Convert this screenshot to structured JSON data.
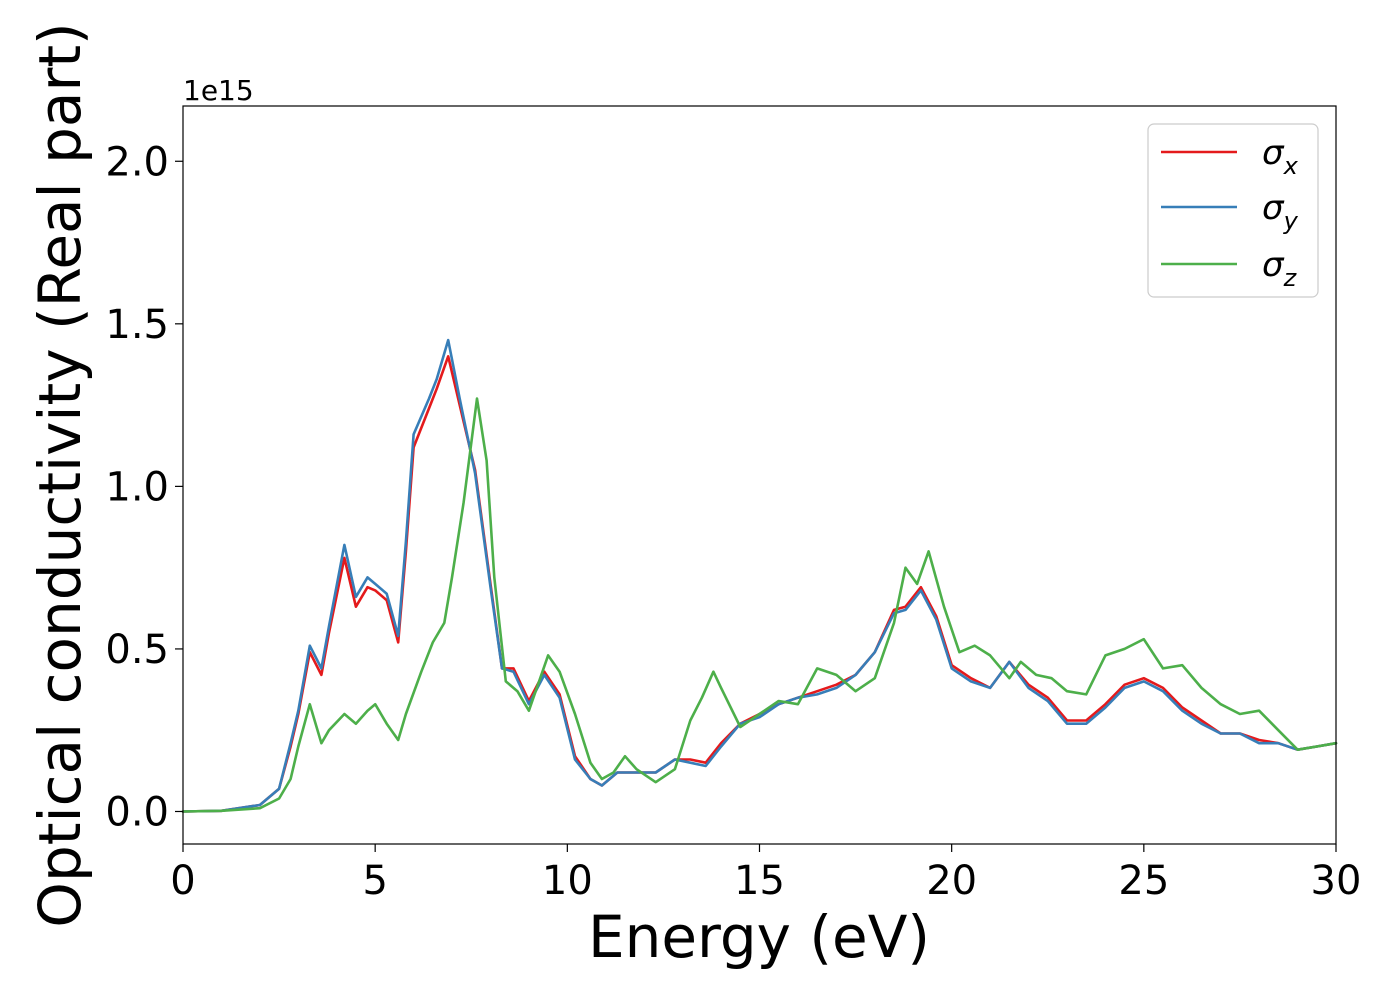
{
  "chart_data": {
    "type": "line",
    "xlabel": "Energy (eV)",
    "ylabel": "Optical conductivity (Real part)",
    "offset_text": "1e15",
    "xlim": [
      0,
      30
    ],
    "ylim": [
      -0.1,
      2.17
    ],
    "xticks": [
      0,
      5,
      10,
      15,
      20,
      25,
      30
    ],
    "xtick_labels": [
      "0",
      "5",
      "10",
      "15",
      "20",
      "25",
      "30"
    ],
    "yticks": [
      0.0,
      0.5,
      1.0,
      1.5,
      2.0
    ],
    "ytick_labels": [
      "0.0",
      "0.5",
      "1.0",
      "1.5",
      "2.0"
    ],
    "grid": false,
    "legend_position": "top-right",
    "series": [
      {
        "name": "σx",
        "label_base": "σ",
        "label_sub": "x",
        "color": "#e41a1c",
        "x": [
          0,
          1,
          2,
          2.5,
          2.8,
          3.0,
          3.3,
          3.6,
          3.8,
          4.2,
          4.5,
          4.8,
          5.0,
          5.3,
          5.6,
          5.8,
          6.0,
          6.4,
          6.6,
          6.9,
          7.2,
          7.6,
          8.0,
          8.3,
          8.6,
          9.0,
          9.4,
          9.8,
          10.2,
          10.6,
          10.9,
          11.3,
          11.8,
          12.3,
          12.8,
          13.2,
          13.6,
          14.0,
          14.5,
          15.0,
          15.5,
          16.0,
          16.5,
          17.0,
          17.5,
          18.0,
          18.5,
          18.8,
          19.2,
          19.6,
          20.0,
          20.5,
          21.0,
          21.5,
          22.0,
          22.5,
          23.0,
          23.5,
          24.0,
          24.5,
          25.0,
          25.5,
          26.0,
          26.5,
          27.0,
          27.5,
          28.0,
          28.5,
          29.0,
          29.5,
          30.0
        ],
        "y": [
          0,
          0.002,
          0.02,
          0.07,
          0.2,
          0.3,
          0.49,
          0.42,
          0.55,
          0.78,
          0.63,
          0.69,
          0.68,
          0.65,
          0.52,
          0.8,
          1.12,
          1.24,
          1.3,
          1.4,
          1.25,
          1.05,
          0.7,
          0.44,
          0.44,
          0.34,
          0.43,
          0.36,
          0.17,
          0.1,
          0.08,
          0.12,
          0.12,
          0.12,
          0.16,
          0.16,
          0.15,
          0.21,
          0.27,
          0.3,
          0.33,
          0.35,
          0.37,
          0.39,
          0.42,
          0.49,
          0.62,
          0.63,
          0.69,
          0.6,
          0.45,
          0.41,
          0.38,
          0.46,
          0.39,
          0.35,
          0.28,
          0.28,
          0.33,
          0.39,
          0.41,
          0.38,
          0.32,
          0.28,
          0.24,
          0.24,
          0.22,
          0.21,
          0.19,
          0.2,
          0.21
        ]
      },
      {
        "name": "σy",
        "label_base": "σ",
        "label_sub": "y",
        "color": "#377eb8",
        "x": [
          0,
          1,
          2,
          2.5,
          2.8,
          3.0,
          3.3,
          3.6,
          3.8,
          4.2,
          4.5,
          4.8,
          5.0,
          5.3,
          5.6,
          5.8,
          6.0,
          6.4,
          6.6,
          6.9,
          7.2,
          7.6,
          8.0,
          8.3,
          8.6,
          9.0,
          9.4,
          9.8,
          10.2,
          10.6,
          10.9,
          11.3,
          11.8,
          12.3,
          12.8,
          13.2,
          13.6,
          14.0,
          14.5,
          15.0,
          15.5,
          16.0,
          16.5,
          17.0,
          17.5,
          18.0,
          18.5,
          18.8,
          19.2,
          19.6,
          20.0,
          20.5,
          21.0,
          21.5,
          22.0,
          22.5,
          23.0,
          23.5,
          24.0,
          24.5,
          25.0,
          25.5,
          26.0,
          26.5,
          27.0,
          27.5,
          28.0,
          28.5,
          29.0,
          29.5,
          30.0
        ],
        "y": [
          0,
          0.002,
          0.02,
          0.07,
          0.21,
          0.31,
          0.51,
          0.44,
          0.57,
          0.82,
          0.66,
          0.72,
          0.7,
          0.67,
          0.54,
          0.83,
          1.16,
          1.27,
          1.33,
          1.45,
          1.27,
          1.04,
          0.69,
          0.44,
          0.43,
          0.33,
          0.42,
          0.35,
          0.16,
          0.1,
          0.08,
          0.12,
          0.12,
          0.12,
          0.16,
          0.15,
          0.14,
          0.2,
          0.27,
          0.29,
          0.33,
          0.35,
          0.36,
          0.38,
          0.42,
          0.49,
          0.61,
          0.62,
          0.68,
          0.59,
          0.44,
          0.4,
          0.38,
          0.46,
          0.38,
          0.34,
          0.27,
          0.27,
          0.32,
          0.38,
          0.4,
          0.37,
          0.31,
          0.27,
          0.24,
          0.24,
          0.21,
          0.21,
          0.19,
          0.2,
          0.21
        ]
      },
      {
        "name": "σz",
        "label_base": "σ",
        "label_sub": "z",
        "color": "#4daf4a",
        "x": [
          0,
          1,
          2,
          2.5,
          2.8,
          3.0,
          3.3,
          3.6,
          3.8,
          4.2,
          4.5,
          4.8,
          5.0,
          5.3,
          5.6,
          5.8,
          6.2,
          6.5,
          6.8,
          7.0,
          7.3,
          7.65,
          7.9,
          8.1,
          8.4,
          8.7,
          9.0,
          9.5,
          9.8,
          10.2,
          10.6,
          10.9,
          11.2,
          11.5,
          11.8,
          12.3,
          12.8,
          13.2,
          13.5,
          13.8,
          14.0,
          14.5,
          15.0,
          15.5,
          16.0,
          16.5,
          17.0,
          17.5,
          18.0,
          18.5,
          18.8,
          19.1,
          19.4,
          19.8,
          20.2,
          20.6,
          21.0,
          21.5,
          21.8,
          22.2,
          22.6,
          23.0,
          23.5,
          24.0,
          24.5,
          25.0,
          25.5,
          26.0,
          26.5,
          27.0,
          27.5,
          28.0,
          28.5,
          29.0,
          29.5,
          30.0
        ],
        "y": [
          0,
          0.002,
          0.01,
          0.04,
          0.1,
          0.2,
          0.33,
          0.21,
          0.25,
          0.3,
          0.27,
          0.31,
          0.33,
          0.27,
          0.22,
          0.3,
          0.43,
          0.52,
          0.58,
          0.72,
          0.95,
          1.27,
          1.08,
          0.72,
          0.4,
          0.37,
          0.31,
          0.48,
          0.43,
          0.3,
          0.15,
          0.1,
          0.12,
          0.17,
          0.13,
          0.09,
          0.13,
          0.28,
          0.35,
          0.43,
          0.38,
          0.26,
          0.3,
          0.34,
          0.33,
          0.44,
          0.42,
          0.37,
          0.41,
          0.58,
          0.75,
          0.7,
          0.8,
          0.63,
          0.49,
          0.51,
          0.48,
          0.41,
          0.46,
          0.42,
          0.41,
          0.37,
          0.36,
          0.48,
          0.5,
          0.53,
          0.44,
          0.45,
          0.38,
          0.33,
          0.3,
          0.31,
          0.25,
          0.19,
          0.2,
          0.21
        ]
      }
    ]
  }
}
